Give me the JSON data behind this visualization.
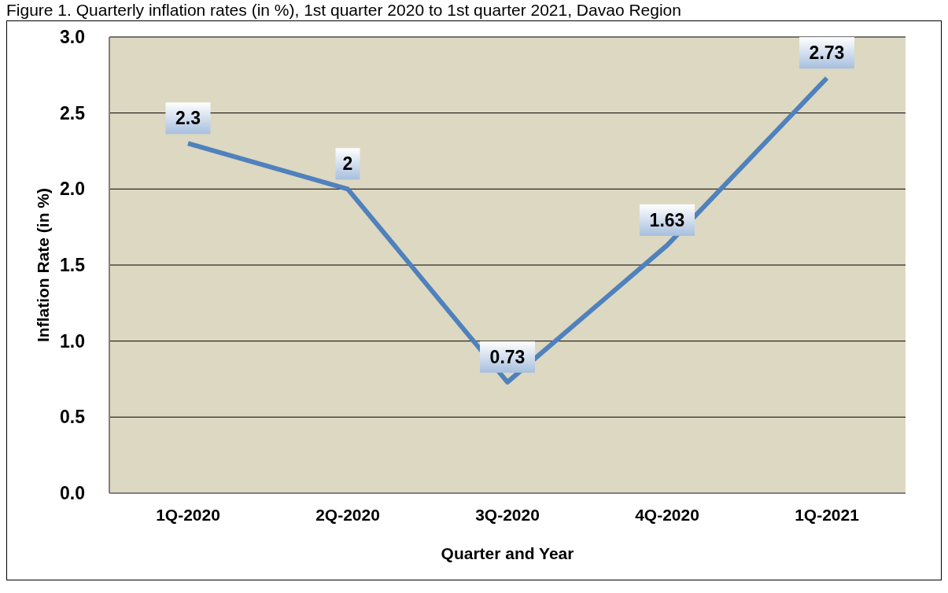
{
  "chart_data": {
    "type": "line",
    "title": "Figure 1. Quarterly inflation rates (in %), 1st quarter 2020 to 1st quarter 2021, Davao Region",
    "xlabel": "Quarter and Year",
    "ylabel": "Inflation Rate (in %)",
    "categories": [
      "1Q-2020",
      "2Q-2020",
      "3Q-2020",
      "4Q-2020",
      "1Q-2021"
    ],
    "series": [
      {
        "color": "#4f81bd",
        "values": [
          2.3,
          2,
          0.73,
          1.63,
          2.73
        ]
      }
    ],
    "ylim": [
      0,
      3
    ],
    "yticks": [
      {
        "value": 0,
        "label": "0.0"
      },
      {
        "value": 0.5,
        "label": "0.5"
      },
      {
        "value": 1,
        "label": "1.0"
      },
      {
        "value": 1.5,
        "label": "1.5"
      },
      {
        "value": 2,
        "label": "2.0"
      },
      {
        "value": 2.5,
        "label": "2.5"
      },
      {
        "value": 3,
        "label": "3.0"
      }
    ],
    "grid": "y",
    "data_labels": true,
    "legend": false
  }
}
